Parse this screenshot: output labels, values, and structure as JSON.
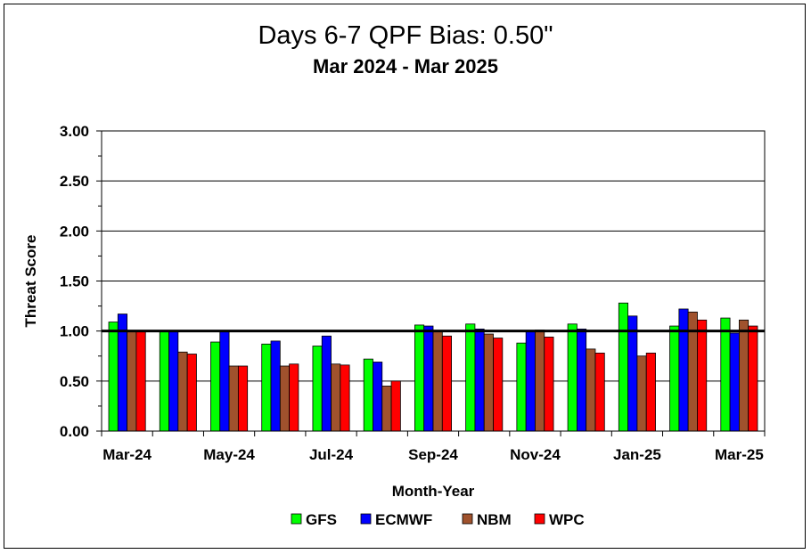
{
  "chart_data": {
    "type": "bar",
    "title": "Days 6-7 QPF Bias:  0.50\"",
    "subtitle": "Mar 2024 - Mar 2025",
    "xlabel": "Month-Year",
    "ylabel": "Threat Score",
    "ylim": [
      0,
      3
    ],
    "yticks": [
      "0.00",
      "0.50",
      "1.00",
      "1.50",
      "2.00",
      "2.50",
      "3.00"
    ],
    "categories": [
      "Mar-24",
      "Apr-24",
      "May-24",
      "Jun-24",
      "Jul-24",
      "Aug-24",
      "Sep-24",
      "Oct-24",
      "Nov-24",
      "Dec-24",
      "Jan-25",
      "Feb-25",
      "Mar-25"
    ],
    "xtick_labels": [
      "Mar-24",
      "May-24",
      "Jul-24",
      "Sep-24",
      "Nov-24",
      "Jan-25",
      "Mar-25"
    ],
    "reference_line": 1.0,
    "grid": true,
    "legend_position": "bottom",
    "series": [
      {
        "name": "GFS",
        "color": "#00ff00",
        "values": [
          1.09,
          1.0,
          0.89,
          0.87,
          0.85,
          0.72,
          1.06,
          1.07,
          0.88,
          1.07,
          1.28,
          1.05,
          1.13
        ]
      },
      {
        "name": "ECMWF",
        "color": "#0000ff",
        "values": [
          1.17,
          1.0,
          1.0,
          0.9,
          0.95,
          0.69,
          1.05,
          1.02,
          1.0,
          1.02,
          1.15,
          1.22,
          0.98
        ]
      },
      {
        "name": "NBM",
        "color": "#a0522d",
        "values": [
          1.0,
          0.79,
          0.65,
          0.65,
          0.67,
          0.45,
          1.0,
          0.97,
          1.01,
          0.82,
          0.75,
          1.19,
          1.11
        ]
      },
      {
        "name": "WPC",
        "color": "#ff0000",
        "values": [
          1.0,
          0.77,
          0.65,
          0.67,
          0.66,
          0.5,
          0.95,
          0.93,
          0.94,
          0.78,
          0.78,
          1.11,
          1.05
        ]
      }
    ]
  }
}
